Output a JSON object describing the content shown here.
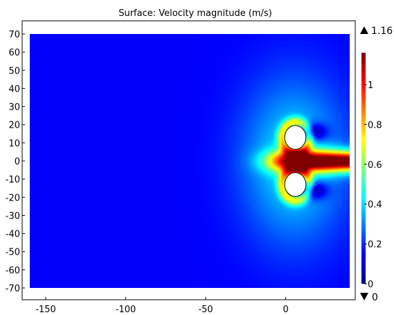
{
  "chart_data": {
    "type": "heatmap",
    "title": "Surface: Velocity magnitude (m/s)",
    "xlabel": "",
    "ylabel": "",
    "x_ticks": [
      -150,
      -100,
      -50,
      0
    ],
    "y_ticks": [
      70,
      60,
      50,
      40,
      30,
      20,
      10,
      0,
      -10,
      -20,
      -30,
      -40,
      -50,
      -60,
      -70
    ],
    "x_tick_labels": [
      "-150",
      "-100",
      "-50",
      "0"
    ],
    "y_tick_labels": [
      "70",
      "60",
      "50",
      "40",
      "30",
      "20",
      "10",
      "0",
      "-10",
      "-20",
      "-30",
      "-40",
      "-50",
      "-60",
      "-70"
    ],
    "xlim": [
      -165,
      40
    ],
    "ylim": [
      -70,
      70
    ],
    "domain_x": [
      -160,
      40
    ],
    "quantity": "Velocity magnitude",
    "unit": "m/s",
    "colorscale": "jet",
    "colorbar": {
      "min": 0,
      "max": 1.16,
      "max_label": "1.16",
      "min_label": "0",
      "ticks": [
        1,
        0.8,
        0.6,
        0.4,
        0.2,
        0
      ],
      "tick_labels": [
        "1",
        "0.8",
        "0.6",
        "0.4",
        "0.2",
        "0"
      ]
    },
    "obstacles": [
      {
        "shape": "circle",
        "cx": 6,
        "cy": 13,
        "r": 6
      },
      {
        "shape": "circle",
        "cx": 6,
        "cy": -13,
        "r": 6
      }
    ],
    "features": {
      "jet_core": {
        "x_start": 6,
        "y": 0,
        "peak_value": 1.16
      },
      "wake_max_value": 0.5
    },
    "grid": false
  }
}
